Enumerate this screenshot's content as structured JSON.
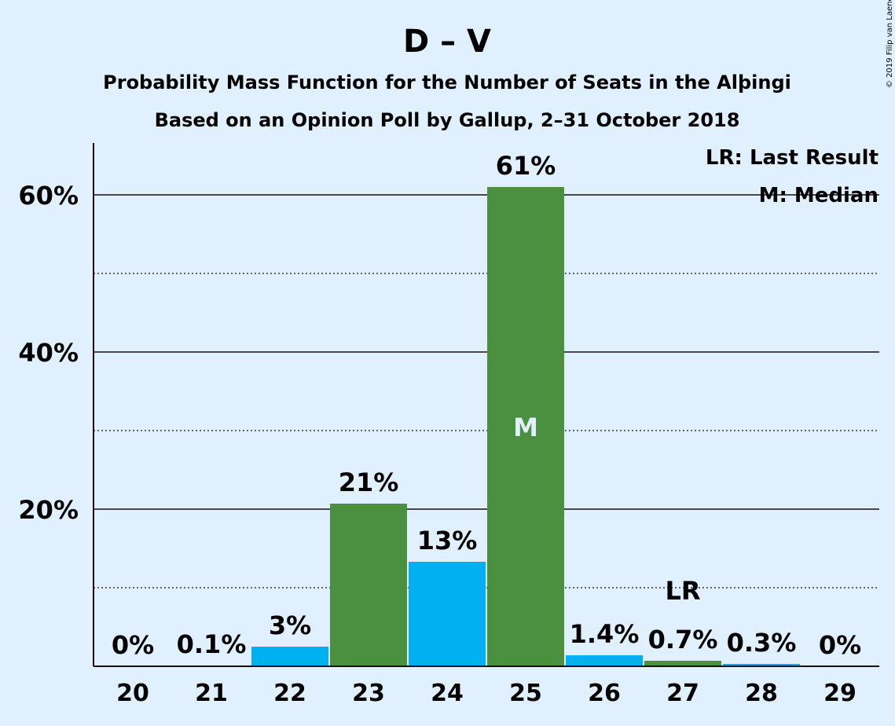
{
  "chart_data": {
    "type": "bar",
    "title": "D – V",
    "subtitle_1": "Probability Mass Function for the Number of Seats in the Alþingi",
    "subtitle_2": "Based on an Opinion Poll by Gallup, 2–31 October 2018",
    "categories": [
      "20",
      "21",
      "22",
      "23",
      "24",
      "25",
      "26",
      "27",
      "28",
      "29"
    ],
    "values": [
      0,
      0.1,
      2.5,
      20.7,
      13.3,
      61.0,
      1.4,
      0.7,
      0.3,
      0
    ],
    "labels": [
      "0%",
      "0.1%",
      "3%",
      "21%",
      "13%",
      "61%",
      "1.4%",
      "0.7%",
      "0.3%",
      "0%"
    ],
    "bar_colors": [
      "#00b0f0",
      "#00b0f0",
      "#00b0f0",
      "#4a9040",
      "#00b0f0",
      "#4a9040",
      "#00b0f0",
      "#4a9040",
      "#00b0f0",
      "#00b0f0"
    ],
    "ylim": [
      0,
      66
    ],
    "y_major_ticks": [
      20,
      40,
      60
    ],
    "y_minor_ticks": [
      10,
      30,
      50
    ],
    "y_tick_labels": [
      "20%",
      "40%",
      "60%"
    ],
    "median_category": "25",
    "median_marker": "M",
    "last_result_category": "27",
    "last_result_marker": "LR",
    "legend": [
      "LR: Last Result",
      "M: Median"
    ],
    "legend_position": "top-right",
    "grid": true
  },
  "copyright": "© 2019 Filip van Laenen",
  "colors": {
    "background": "#e0f0ff",
    "blue": "#00b0f0",
    "green": "#4a9040",
    "text": "#1a0a12"
  }
}
